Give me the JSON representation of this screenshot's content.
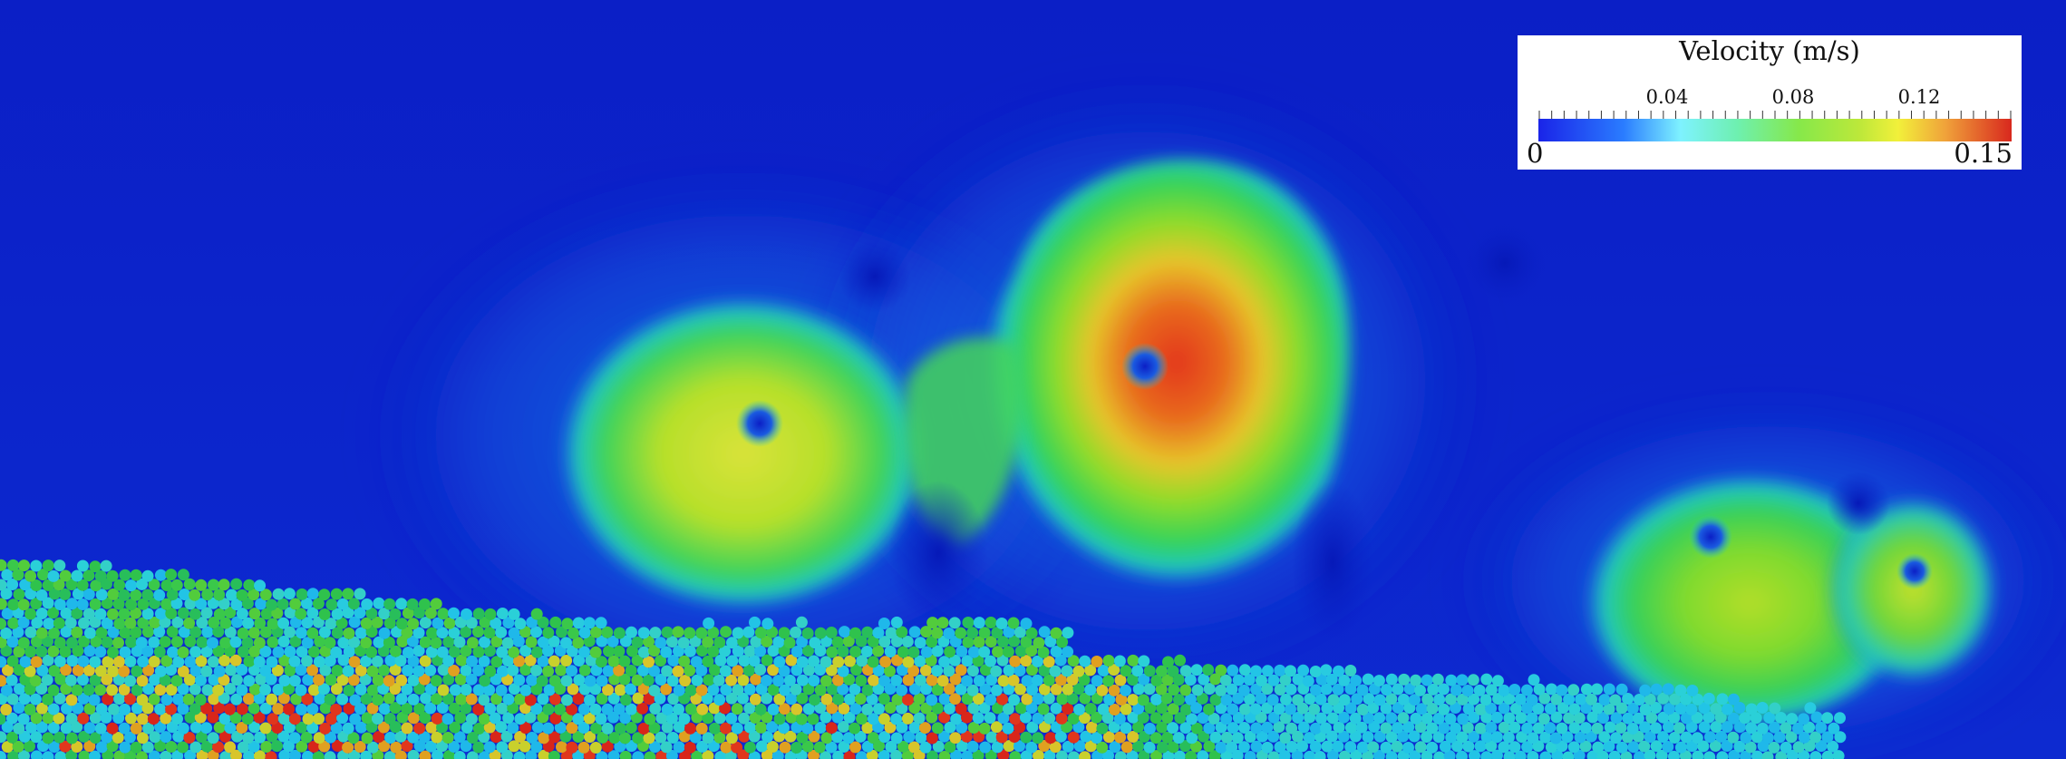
{
  "legend": {
    "title": "Velocity (m/s)",
    "min_label": "0",
    "max_label": "0.15",
    "ticks": [
      "0.04",
      "0.08",
      "0.12"
    ],
    "tick_values": [
      0.04,
      0.08,
      0.12
    ],
    "range": [
      0,
      0.15
    ],
    "colormap": [
      "#0a1fc4",
      "#1a4dff",
      "#3aa8ff",
      "#7ef0ff",
      "#3fe06a",
      "#9be62a",
      "#f2f03a",
      "#f5a623",
      "#e53b1f",
      "#c9221a"
    ]
  },
  "scene": {
    "description_colors": {
      "background": "#0a1fc4",
      "eddy_core": "#e33b1c",
      "eddy_mid": "#7fe02a",
      "eddy_edge": "#1fd3d0",
      "particles_cool": "#21c6e8",
      "particles_mid": "#2fc44a",
      "particles_warm": "#e0a020",
      "particles_hot": "#e0361c"
    }
  }
}
